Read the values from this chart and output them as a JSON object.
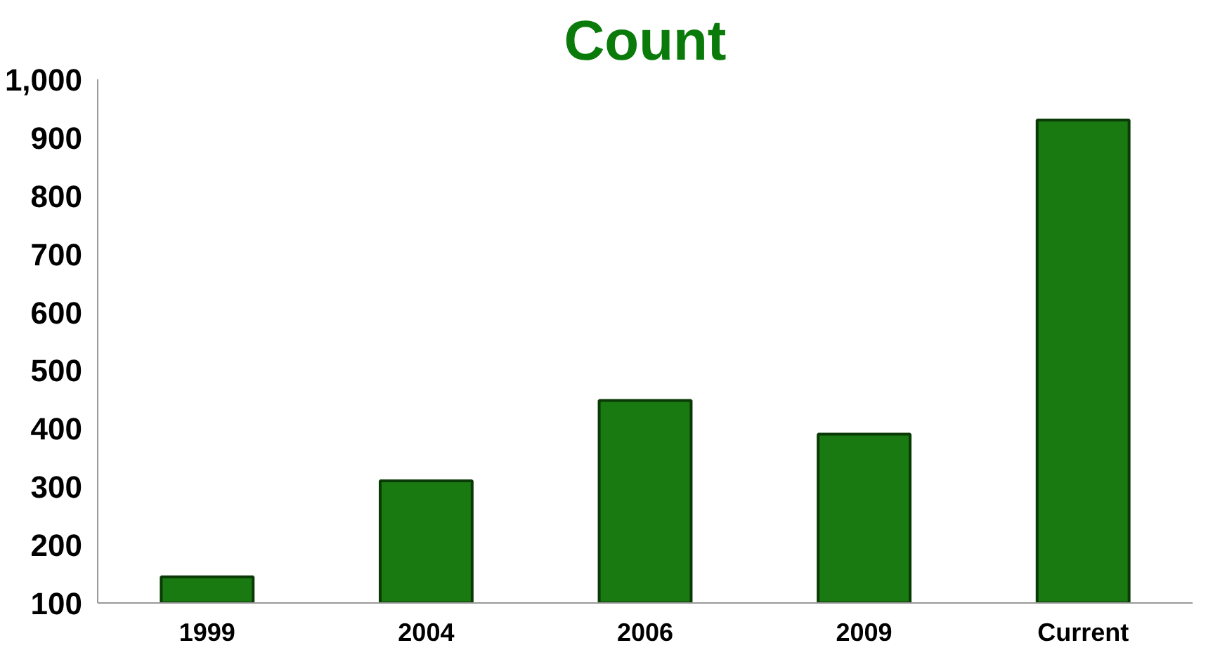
{
  "chart_data": {
    "type": "bar",
    "title": "Count",
    "categories": [
      "1999",
      "2004",
      "2006",
      "2009",
      "Current"
    ],
    "values": [
      145,
      310,
      448,
      390,
      930
    ],
    "color": "#1a7a12",
    "ylim": [
      100,
      1000
    ],
    "yticks": [
      100,
      200,
      300,
      400,
      500,
      600,
      700,
      800,
      900,
      {
        "value": 1000,
        "label": "1,000"
      }
    ],
    "grid": false
  }
}
